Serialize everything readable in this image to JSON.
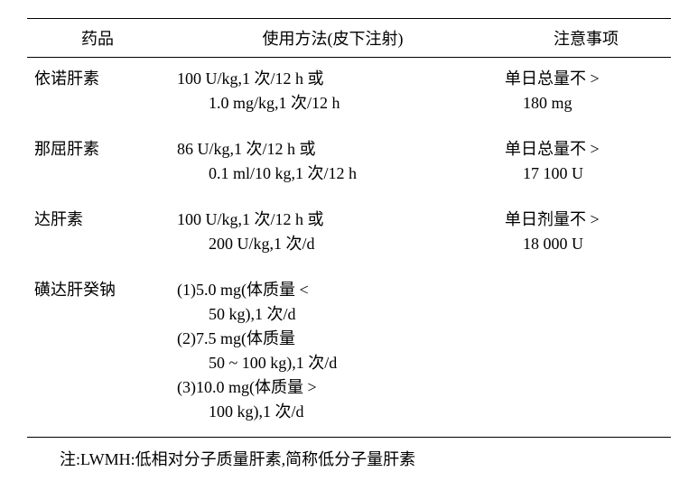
{
  "headers": {
    "drug": "药品",
    "usage": "使用方法(皮下注射)",
    "caution": "注意事项"
  },
  "rows": [
    {
      "drug": "依诺肝素",
      "usage_l1": "100 U/kg,1 次/12 h 或",
      "usage_l2": "1.0 mg/kg,1 次/12 h",
      "caution_l1": "单日总量不 >",
      "caution_l2": "180 mg"
    },
    {
      "drug": "那屈肝素",
      "usage_l1": "86 U/kg,1 次/12 h 或",
      "usage_l2": "0.1 ml/10 kg,1 次/12 h",
      "caution_l1": "单日总量不 >",
      "caution_l2": "17 100 U"
    },
    {
      "drug": "达肝素",
      "usage_l1": "100 U/kg,1 次/12 h 或",
      "usage_l2": "200 U/kg,1 次/d",
      "caution_l1": "单日剂量不 >",
      "caution_l2": "18 000 U"
    }
  ],
  "row4": {
    "drug": "磺达肝癸钠",
    "u1a": "(1)5.0 mg(体质量 <",
    "u1b": "50 kg),1 次/d",
    "u2a": "(2)7.5 mg(体质量",
    "u2b": "50 ~ 100 kg),1 次/d",
    "u3a": "(3)10.0 mg(体质量 >",
    "u3b": "100 kg),1 次/d"
  },
  "footer": "注:LWMH:低相对分子质量肝素,简称低分子量肝素"
}
